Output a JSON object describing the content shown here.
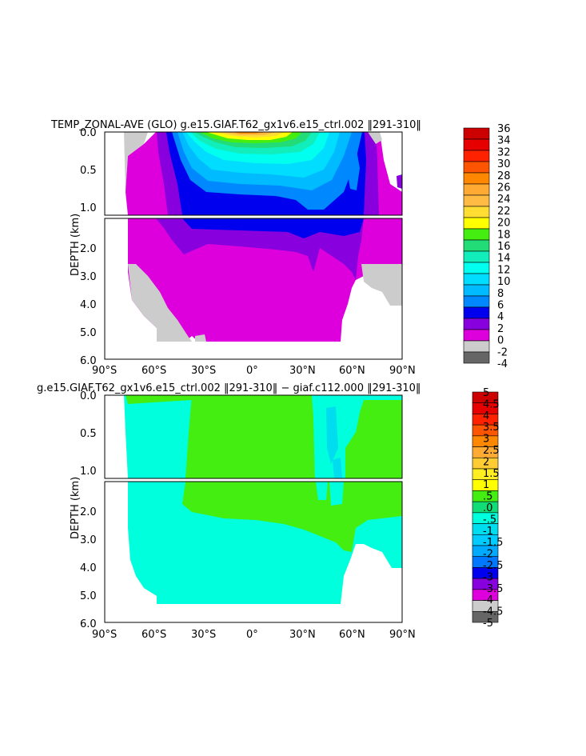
{
  "chart_data": [
    {
      "type": "heatmap",
      "title": "TEMP_ZONAL-AVE (GLO) g.e15.GIAF.T62_gx1v6.e15_ctrl.002 ‖291-310‖",
      "ylabel": "DEPTH (km)",
      "xlabel": "",
      "xlim": [
        -90,
        90
      ],
      "ylim_upper": [
        0.0,
        1.1
      ],
      "ylim_lower": [
        1.1,
        6.0
      ],
      "x_ticks": [
        "90°S",
        "60°S",
        "30°S",
        "0°",
        "30°N",
        "60°N",
        "90°N"
      ],
      "y_ticks_upper": [
        "0.0",
        "0.5",
        "1.0"
      ],
      "y_ticks_lower": [
        "2.0",
        "3.0",
        "4.0",
        "5.0",
        "6.0"
      ],
      "colorbar_labels": [
        "36",
        "34",
        "32",
        "30",
        "28",
        "26",
        "24",
        "22",
        "20",
        "18",
        "16",
        "14",
        "12",
        "10",
        "8",
        "6",
        "4",
        "2",
        "0",
        "-2",
        "-4"
      ],
      "colorbar_colors": [
        "#cc0000",
        "#e60000",
        "#ff2200",
        "#ff5500",
        "#ff8800",
        "#ffaa33",
        "#ffbb44",
        "#ffdd33",
        "#ffff00",
        "#44ee11",
        "#22dd77",
        "#11eebb",
        "#00ffee",
        "#00ddff",
        "#00bbff",
        "#0088ff",
        "#0000ee",
        "#8800dd",
        "#dd00dd",
        "#cccccc",
        "#666666"
      ]
    },
    {
      "type": "heatmap",
      "title": "g.e15.GIAF.T62_gx1v6.e15_ctrl.002 ‖291-310‖ − giaf.c112.000 ‖291-310‖",
      "ylabel": "DEPTH (km)",
      "xlabel": "",
      "xlim": [
        -90,
        90
      ],
      "ylim_upper": [
        0.0,
        1.1
      ],
      "ylim_lower": [
        1.1,
        6.0
      ],
      "x_ticks": [
        "90°S",
        "60°S",
        "30°S",
        "0°",
        "30°N",
        "60°N",
        "90°N"
      ],
      "y_ticks_upper": [
        "0.0",
        "0.5",
        "1.0"
      ],
      "y_ticks_lower": [
        "2.0",
        "3.0",
        "4.0",
        "5.0",
        "6.0"
      ],
      "colorbar_labels": [
        "5",
        "4.5",
        "4",
        "3.5",
        "3",
        "2.5",
        "2",
        "1.5",
        "1",
        ".5",
        ".0",
        "-.5",
        "-1",
        "-1.5",
        "-2",
        "-2.5",
        "-3",
        "-3.5",
        "-4",
        "-4.5",
        "-5"
      ],
      "colorbar_colors": [
        "#cc0000",
        "#e60000",
        "#ff2200",
        "#ff5500",
        "#ff8800",
        "#ffaa33",
        "#ffcc33",
        "#ffee22",
        "#ffff00",
        "#44ee11",
        "#11dd77",
        "#00ffdd",
        "#00ddee",
        "#00ccff",
        "#00aaff",
        "#0077ff",
        "#0000ee",
        "#8800dd",
        "#dd00dd",
        "#cccccc",
        "#666666"
      ]
    }
  ]
}
